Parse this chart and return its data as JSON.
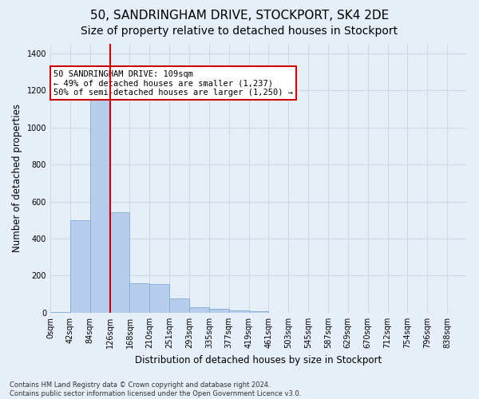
{
  "title": "50, SANDRINGHAM DRIVE, STOCKPORT, SK4 2DE",
  "subtitle": "Size of property relative to detached houses in Stockport",
  "xlabel": "Distribution of detached houses by size in Stockport",
  "ylabel": "Number of detached properties",
  "footer_line1": "Contains HM Land Registry data © Crown copyright and database right 2024.",
  "footer_line2": "Contains public sector information licensed under the Open Government Licence v3.0.",
  "categories": [
    "0sqm",
    "42sqm",
    "84sqm",
    "126sqm",
    "168sqm",
    "210sqm",
    "251sqm",
    "293sqm",
    "335sqm",
    "377sqm",
    "419sqm",
    "461sqm",
    "503sqm",
    "545sqm",
    "587sqm",
    "629sqm",
    "670sqm",
    "712sqm",
    "754sqm",
    "796sqm",
    "838sqm"
  ],
  "values": [
    5,
    500,
    1237,
    540,
    160,
    155,
    78,
    30,
    22,
    12,
    10,
    0,
    0,
    0,
    0,
    0,
    0,
    0,
    0,
    0,
    0
  ],
  "bar_color": "#b8cceb",
  "bar_edge_color": "#7baed6",
  "vline_color": "#cc0000",
  "vline_x_index": 2,
  "ylim_max": 1450,
  "yticks": [
    0,
    200,
    400,
    600,
    800,
    1000,
    1200,
    1400
  ],
  "annotation_text": "50 SANDRINGHAM DRIVE: 109sqm\n← 49% of detached houses are smaller (1,237)\n50% of semi-detached houses are larger (1,250) →",
  "annotation_box_facecolor": "#ffffff",
  "annotation_box_edgecolor": "#cc0000",
  "bg_color": "#e6eef8",
  "grid_color": "#d0d8e8",
  "title_fontsize": 11,
  "subtitle_fontsize": 10,
  "axis_label_fontsize": 8.5,
  "tick_fontsize": 7,
  "annotation_fontsize": 7.5,
  "footer_fontsize": 6
}
